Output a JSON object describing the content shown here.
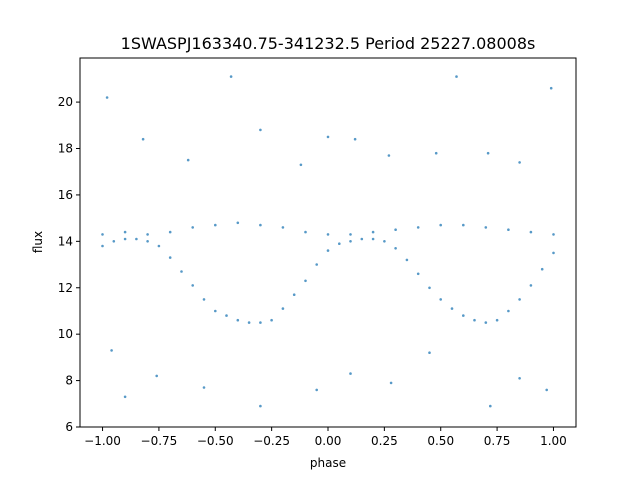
{
  "chart_data": {
    "type": "scatter",
    "title": "1SWASPJ163340.75-341232.5 Period 25227.08008s",
    "xlabel": "phase",
    "ylabel": "flux",
    "xlim": [
      -1.1,
      1.1
    ],
    "ylim": [
      6,
      21.9
    ],
    "x_ticks": [
      -1.0,
      -0.75,
      -0.5,
      -0.25,
      0.0,
      0.25,
      0.5,
      0.75,
      1.0
    ],
    "x_tick_labels": [
      "−1.00",
      "−0.75",
      "−0.50",
      "−0.25",
      "0.00",
      "0.25",
      "0.50",
      "0.75",
      "1.00"
    ],
    "y_ticks": [
      6,
      8,
      10,
      12,
      14,
      16,
      18,
      20
    ],
    "y_tick_labels": [
      "6",
      "8",
      "10",
      "12",
      "14",
      "16",
      "18",
      "20"
    ],
    "grid": false,
    "point_color": "#1f77b4",
    "series": [
      {
        "points": [
          [
            -1.0,
            13.8
          ],
          [
            -0.95,
            14.0
          ],
          [
            -0.9,
            14.1
          ],
          [
            -0.85,
            14.1
          ],
          [
            -0.8,
            14.0
          ],
          [
            -0.75,
            13.8
          ],
          [
            -0.7,
            13.3
          ],
          [
            -0.65,
            12.7
          ],
          [
            -0.6,
            12.1
          ],
          [
            -0.55,
            11.5
          ],
          [
            -0.5,
            11.0
          ],
          [
            -0.45,
            10.8
          ],
          [
            -0.4,
            10.6
          ],
          [
            -0.35,
            10.5
          ],
          [
            -0.3,
            10.5
          ],
          [
            -0.25,
            10.6
          ],
          [
            -0.2,
            11.1
          ],
          [
            -0.15,
            11.7
          ],
          [
            -0.1,
            12.3
          ],
          [
            -0.05,
            13.0
          ],
          [
            0.0,
            13.6
          ],
          [
            0.05,
            13.9
          ],
          [
            0.1,
            14.0
          ],
          [
            0.15,
            14.1
          ],
          [
            0.2,
            14.1
          ],
          [
            0.25,
            14.0
          ],
          [
            0.3,
            13.7
          ],
          [
            0.35,
            13.2
          ],
          [
            0.4,
            12.6
          ],
          [
            0.45,
            12.0
          ],
          [
            0.5,
            11.5
          ],
          [
            0.55,
            11.1
          ],
          [
            0.6,
            10.8
          ],
          [
            0.65,
            10.6
          ],
          [
            0.7,
            10.5
          ],
          [
            0.75,
            10.6
          ],
          [
            0.8,
            11.0
          ],
          [
            0.85,
            11.5
          ],
          [
            0.9,
            12.1
          ],
          [
            0.95,
            12.8
          ],
          [
            1.0,
            13.5
          ],
          [
            -1.0,
            14.3
          ],
          [
            -0.9,
            14.4
          ],
          [
            -0.8,
            14.3
          ],
          [
            -0.7,
            14.4
          ],
          [
            -0.6,
            14.6
          ],
          [
            -0.5,
            14.7
          ],
          [
            -0.4,
            14.8
          ],
          [
            -0.3,
            14.7
          ],
          [
            -0.2,
            14.6
          ],
          [
            -0.1,
            14.4
          ],
          [
            0.0,
            14.3
          ],
          [
            0.1,
            14.3
          ],
          [
            0.2,
            14.4
          ],
          [
            0.3,
            14.5
          ],
          [
            0.4,
            14.6
          ],
          [
            0.5,
            14.7
          ],
          [
            0.6,
            14.7
          ],
          [
            0.7,
            14.6
          ],
          [
            0.8,
            14.5
          ],
          [
            0.9,
            14.4
          ],
          [
            1.0,
            14.3
          ],
          [
            -0.98,
            20.2
          ],
          [
            -0.82,
            18.4
          ],
          [
            -0.62,
            17.5
          ],
          [
            -0.43,
            21.1
          ],
          [
            -0.3,
            18.8
          ],
          [
            -0.12,
            17.3
          ],
          [
            0.0,
            18.5
          ],
          [
            0.12,
            18.4
          ],
          [
            0.27,
            17.7
          ],
          [
            0.48,
            17.8
          ],
          [
            0.57,
            21.1
          ],
          [
            0.71,
            17.8
          ],
          [
            0.85,
            17.4
          ],
          [
            0.99,
            20.6
          ],
          [
            -0.96,
            9.3
          ],
          [
            -0.9,
            7.3
          ],
          [
            -0.76,
            8.2
          ],
          [
            -0.55,
            7.7
          ],
          [
            -0.3,
            6.9
          ],
          [
            -0.05,
            7.6
          ],
          [
            0.1,
            8.3
          ],
          [
            0.28,
            7.9
          ],
          [
            0.45,
            9.2
          ],
          [
            0.72,
            6.9
          ],
          [
            0.85,
            8.1
          ],
          [
            0.97,
            7.6
          ]
        ]
      }
    ]
  }
}
